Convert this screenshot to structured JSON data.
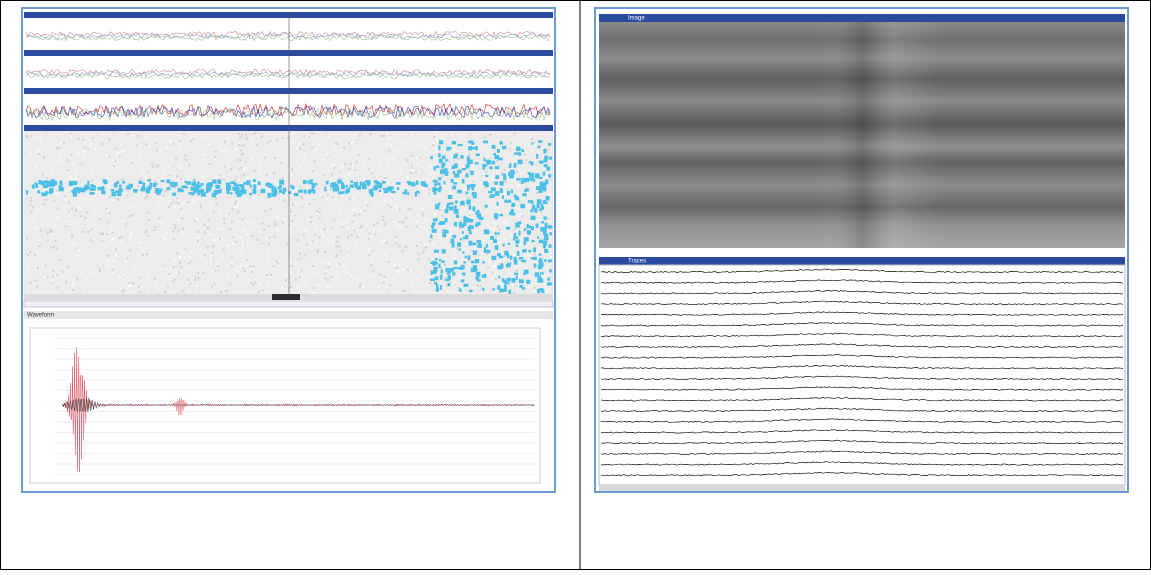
{
  "left": {
    "bottom_panel": {
      "title": "Waveform"
    }
  },
  "right": {
    "top_panel": {
      "title": "Image"
    },
    "bottom_panel": {
      "title": "Traces"
    }
  }
}
